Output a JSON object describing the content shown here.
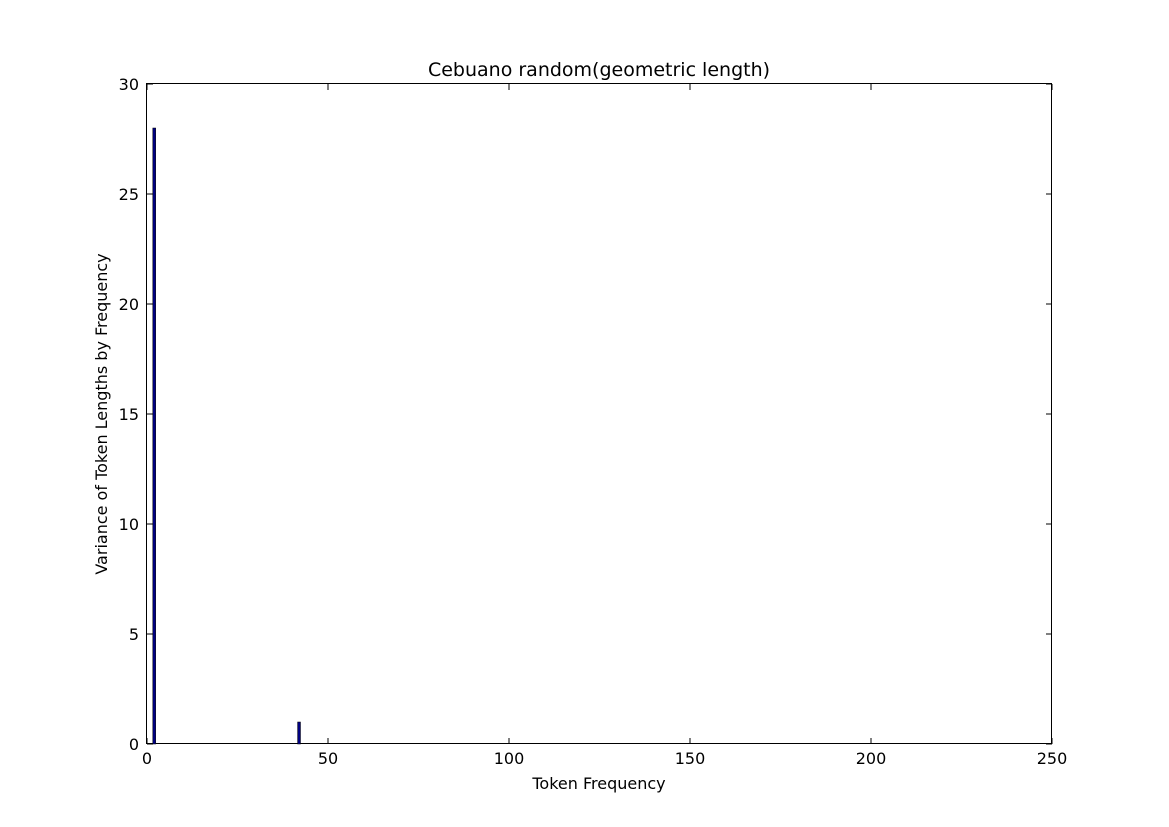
{
  "chart_data": {
    "type": "bar",
    "title": "Cebuano random(geometric length)",
    "xlabel": "Token Frequency",
    "ylabel": "Variance of Token Lengths by Frequency",
    "xlim": [
      0,
      250
    ],
    "ylim": [
      0,
      30
    ],
    "xticks": [
      0,
      50,
      100,
      150,
      200,
      250
    ],
    "yticks": [
      0,
      5,
      10,
      15,
      20,
      25,
      30
    ],
    "grid": false,
    "bar_width": 0.8,
    "bar_color": "#000080",
    "x": [
      1,
      2,
      42
    ],
    "values": [
      0,
      28,
      1
    ]
  }
}
